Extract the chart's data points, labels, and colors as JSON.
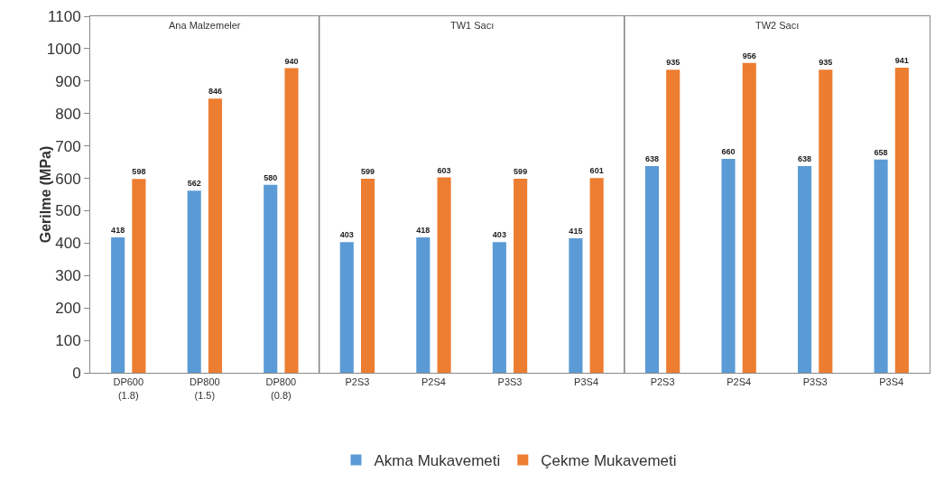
{
  "chart_data": {
    "type": "bar",
    "ylabel": "Gerilme (MPa)",
    "categories": [
      "DP600\n(1.8)",
      "DP800\n(1.5)",
      "DP800\n(0.8)",
      "P2S3",
      "P2S4",
      "P3S3",
      "P3S4",
      "P2S3",
      "P2S4",
      "P3S3",
      "P3S4"
    ],
    "series": [
      {
        "name": "Akma Mukavemeti",
        "color": "#5b9bd5",
        "values": [
          418,
          562,
          580,
          403,
          418,
          403,
          415,
          638,
          660,
          638,
          658
        ]
      },
      {
        "name": "Çekme Mukavemeti",
        "color": "#ed7d31",
        "values": [
          598,
          846,
          940,
          599,
          603,
          599,
          601,
          935,
          956,
          935,
          941
        ]
      }
    ],
    "ylim": [
      0,
      1100
    ],
    "yticks": [
      0,
      100,
      200,
      300,
      400,
      500,
      600,
      700,
      800,
      900,
      1000,
      1100
    ],
    "annotations": [
      "Ana Malzemeler",
      "TW1 Sacı",
      "TW2 Sacı"
    ],
    "grid": false,
    "legend": "bottom",
    "data_labels": true
  }
}
